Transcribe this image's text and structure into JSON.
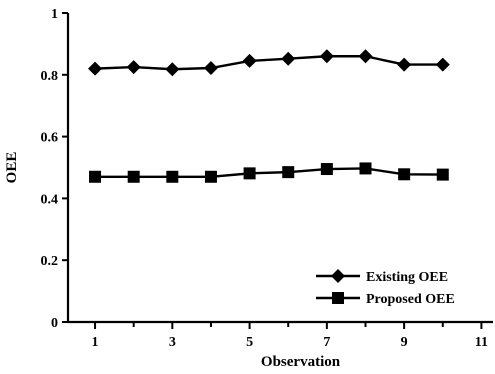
{
  "chart_data": {
    "type": "line",
    "title": "",
    "xlabel": "Observation",
    "ylabel": "OEE",
    "xlim": [
      0.3,
      11.3
    ],
    "ylim": [
      0,
      1
    ],
    "xticks_major": [
      1,
      3,
      5,
      7,
      9,
      11
    ],
    "xticks_minor": [
      2,
      4,
      6,
      8,
      10
    ],
    "yticks": [
      0,
      0.2,
      0.4,
      0.6,
      0.8,
      1
    ],
    "ytick_labels": [
      "0",
      "0.2",
      "0.4",
      "0.6",
      "0.8",
      "1"
    ],
    "xtick_labels": [
      "1",
      "3",
      "5",
      "7",
      "9",
      "11"
    ],
    "grid": false,
    "legend_position": "bottom-right",
    "x": [
      1,
      2,
      3,
      4,
      5,
      6,
      7,
      8,
      9,
      10
    ],
    "series": [
      {
        "name": "Existing OEE",
        "marker": "diamond",
        "color": "#000000",
        "values": [
          0.82,
          0.825,
          0.818,
          0.822,
          0.845,
          0.852,
          0.86,
          0.86,
          0.833,
          0.833
        ]
      },
      {
        "name": "Proposed OEE",
        "marker": "square",
        "color": "#000000",
        "values": [
          0.47,
          0.47,
          0.47,
          0.47,
          0.481,
          0.485,
          0.495,
          0.497,
          0.478,
          0.477
        ]
      }
    ]
  }
}
